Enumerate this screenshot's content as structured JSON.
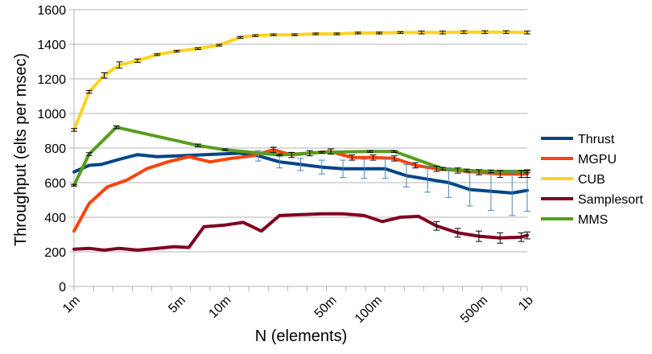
{
  "chart_data": {
    "type": "line",
    "title": "",
    "xlabel": "N (elements)",
    "ylabel": "Throughput (elts per msec)",
    "ylim": [
      0,
      1600
    ],
    "yticks": [
      0,
      200,
      400,
      600,
      800,
      1000,
      1200,
      1400,
      1600
    ],
    "x_ticks": [
      {
        "label": "1m",
        "log_n": 6
      },
      {
        "label": "5m",
        "log_n": 6.699
      },
      {
        "label": "10m",
        "log_n": 7
      },
      {
        "label": "50m",
        "log_n": 7.699
      },
      {
        "label": "100m",
        "log_n": 8
      },
      {
        "label": "500m",
        "log_n": 8.699
      },
      {
        "label": "1b",
        "log_n": 9
      }
    ],
    "x_log_n": [
      6.0,
      6.129,
      6.257,
      6.386,
      6.514,
      6.643,
      6.771,
      6.9,
      7.029,
      7.157,
      7.286,
      7.414,
      7.543,
      7.671,
      7.8,
      7.929,
      8.057,
      8.186,
      8.314,
      8.443,
      8.571,
      8.7,
      8.829,
      8.957,
      9.0
    ],
    "legend_position": "right",
    "series": [
      {
        "name": "Thrust",
        "color": "#004586",
        "x": [
          6.0,
          6.1,
          6.18,
          6.3,
          6.42,
          6.55,
          6.68,
          6.82,
          6.96,
          7.1,
          7.22,
          7.36,
          7.5,
          7.64,
          7.78,
          7.92,
          8.06,
          8.2,
          8.34,
          8.48,
          8.62,
          8.76,
          8.9,
          9.0
        ],
        "values": [
          662,
          700,
          705,
          735,
          762,
          750,
          755,
          760,
          765,
          770,
          755,
          720,
          705,
          690,
          680,
          680,
          680,
          640,
          620,
          600,
          560,
          550,
          540,
          555
        ],
        "errors": [
          0,
          0,
          0,
          0,
          0,
          0,
          0,
          0,
          0,
          0,
          30,
          35,
          35,
          40,
          50,
          55,
          55,
          65,
          75,
          85,
          95,
          110,
          130,
          120
        ]
      },
      {
        "name": "MGPU",
        "color": "#ff420e",
        "x": [
          6.0,
          6.1,
          6.22,
          6.35,
          6.48,
          6.62,
          6.76,
          6.9,
          7.04,
          7.18,
          7.32,
          7.44,
          7.56,
          7.7,
          7.84,
          7.98,
          8.12,
          8.26,
          8.4,
          8.54,
          8.68,
          8.82,
          8.96,
          9.0
        ],
        "values": [
          320,
          480,
          575,
          615,
          680,
          720,
          750,
          720,
          740,
          755,
          790,
          760,
          770,
          780,
          745,
          745,
          740,
          700,
          680,
          670,
          660,
          650,
          650,
          650
        ],
        "errors": [
          0,
          0,
          0,
          0,
          0,
          0,
          0,
          0,
          0,
          0,
          15,
          15,
          15,
          15,
          15,
          15,
          15,
          15,
          15,
          15,
          15,
          20,
          20,
          20
        ]
      },
      {
        "name": "CUB",
        "color": "#ffd320",
        "x": [
          6.0,
          6.1,
          6.2,
          6.3,
          6.42,
          6.55,
          6.68,
          6.82,
          6.96,
          7.1,
          7.2,
          7.32,
          7.46,
          7.6,
          7.74,
          7.88,
          8.02,
          8.16,
          8.3,
          8.44,
          8.58,
          8.72,
          8.86,
          9.0
        ],
        "values": [
          905,
          1125,
          1220,
          1280,
          1305,
          1340,
          1360,
          1375,
          1395,
          1440,
          1450,
          1455,
          1455,
          1460,
          1460,
          1465,
          1465,
          1468,
          1468,
          1468,
          1470,
          1470,
          1470,
          1468
        ],
        "errors": [
          8,
          8,
          15,
          18,
          10,
          5,
          5,
          5,
          5,
          5,
          5,
          5,
          5,
          5,
          5,
          5,
          5,
          5,
          8,
          8,
          8,
          8,
          8,
          8
        ]
      },
      {
        "name": "Samplesort",
        "color": "#7e0021",
        "x": [
          6.0,
          6.1,
          6.2,
          6.3,
          6.42,
          6.55,
          6.66,
          6.76,
          6.86,
          7.0,
          7.12,
          7.24,
          7.36,
          7.5,
          7.64,
          7.78,
          7.92,
          8.04,
          8.16,
          8.28,
          8.4,
          8.54,
          8.68,
          8.82,
          8.96,
          9.0
        ],
        "values": [
          215,
          220,
          210,
          220,
          210,
          220,
          230,
          225,
          345,
          355,
          370,
          320,
          410,
          415,
          420,
          420,
          410,
          375,
          400,
          405,
          350,
          310,
          290,
          280,
          285,
          295
        ],
        "errors": [
          0,
          0,
          0,
          0,
          0,
          0,
          0,
          0,
          0,
          0,
          0,
          0,
          0,
          0,
          0,
          0,
          0,
          0,
          0,
          0,
          25,
          25,
          30,
          30,
          25,
          20
        ]
      },
      {
        "name": "MMS",
        "color": "#579d1c",
        "x": [
          6.0,
          6.1,
          6.28,
          6.82,
          7.0,
          7.36,
          7.64,
          7.96,
          8.12,
          8.44,
          8.6,
          8.76,
          9.0
        ],
        "values": [
          585,
          765,
          920,
          815,
          790,
          760,
          775,
          780,
          780,
          680,
          670,
          665,
          665
        ],
        "errors": [
          5,
          8,
          8,
          8,
          5,
          5,
          5,
          5,
          5,
          8,
          8,
          8,
          8
        ]
      }
    ]
  }
}
